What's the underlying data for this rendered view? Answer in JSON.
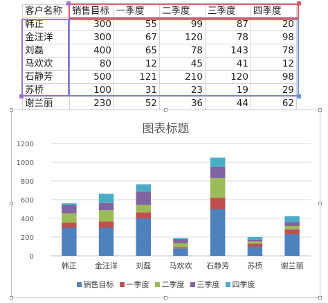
{
  "table": {
    "headers": [
      "客户名称",
      "销售目标",
      "一季度",
      "二季度",
      "三季度",
      "四季度"
    ],
    "rows": [
      {
        "name": "韩正",
        "values": [
          "300",
          "55",
          "99",
          "87",
          "20"
        ]
      },
      {
        "name": "金汪洋",
        "values": [
          "300",
          "67",
          "120",
          "78",
          "98"
        ]
      },
      {
        "name": "刘磊",
        "values": [
          "400",
          "65",
          "78",
          "143",
          "78"
        ]
      },
      {
        "name": "马欢欢",
        "values": [
          "80",
          "12",
          "45",
          "41",
          "12"
        ]
      },
      {
        "name": "石静芳",
        "values": [
          "500",
          "121",
          "210",
          "120",
          "98"
        ]
      },
      {
        "name": "苏桥",
        "values": [
          "100",
          "31",
          "23",
          "19",
          "29"
        ]
      },
      {
        "name": "谢兰丽",
        "values": [
          "230",
          "52",
          "36",
          "44",
          "62"
        ]
      }
    ]
  },
  "chart_data": {
    "type": "bar",
    "stacked": true,
    "title": "图表标题",
    "categories": [
      "韩正",
      "金汪洋",
      "刘磊",
      "马欢欢",
      "石静芳",
      "苏桥",
      "谢兰丽"
    ],
    "series": [
      {
        "name": "销售目标",
        "color": "#4f81bd",
        "values": [
          300,
          300,
          400,
          80,
          500,
          100,
          230
        ]
      },
      {
        "name": "一季度",
        "color": "#c0504d",
        "values": [
          55,
          67,
          65,
          12,
          121,
          31,
          52
        ]
      },
      {
        "name": "二季度",
        "color": "#9bbb59",
        "values": [
          99,
          120,
          78,
          45,
          210,
          23,
          36
        ]
      },
      {
        "name": "三季度",
        "color": "#8064a2",
        "values": [
          87,
          78,
          143,
          41,
          120,
          19,
          44
        ]
      },
      {
        "name": "四季度",
        "color": "#4bacc6",
        "values": [
          20,
          98,
          78,
          12,
          98,
          29,
          62
        ]
      }
    ],
    "ylim": [
      0,
      1200
    ],
    "yticks": [
      "0",
      "200",
      "400",
      "600",
      "800",
      "1000",
      "1200"
    ],
    "grid": true,
    "legend_position": "bottom"
  }
}
